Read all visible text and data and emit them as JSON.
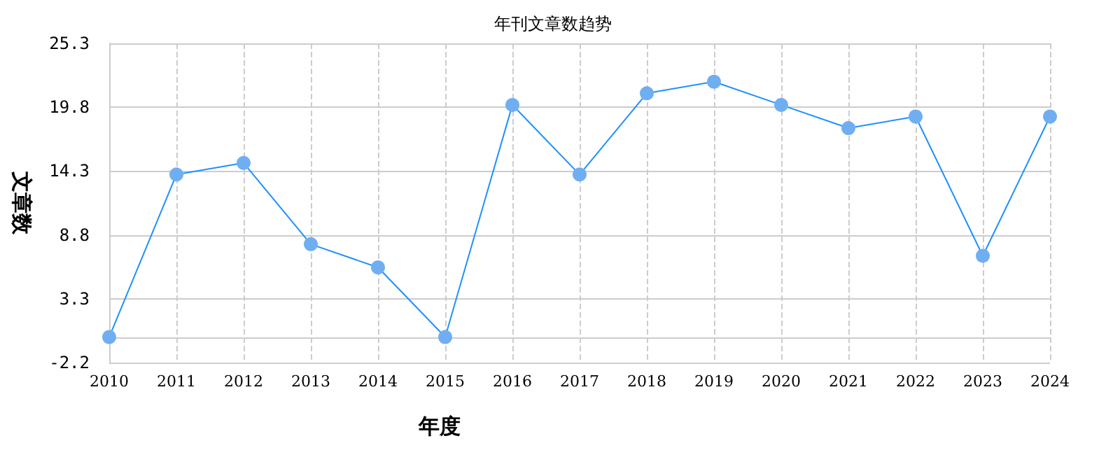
{
  "chart_data": {
    "type": "line",
    "title": "年刊文章数趋势",
    "xlabel": "年度",
    "ylabel": "文章数",
    "categories": [
      "2010",
      "2011",
      "2012",
      "2013",
      "2014",
      "2015",
      "2016",
      "2017",
      "2018",
      "2019",
      "2020",
      "2021",
      "2022",
      "2023",
      "2024"
    ],
    "series": [
      {
        "color": "#1e90ff",
        "values": [
          0,
          14,
          15,
          8,
          6,
          0,
          20,
          14,
          21,
          22,
          20,
          18,
          19,
          7,
          19
        ]
      }
    ],
    "ylim": [
      -2.2,
      25.3
    ],
    "yticks": [
      -2.2,
      3.3,
      8.8,
      14.3,
      19.8,
      25.3
    ],
    "grid": true,
    "marker": "circle",
    "line_style": "solid"
  }
}
